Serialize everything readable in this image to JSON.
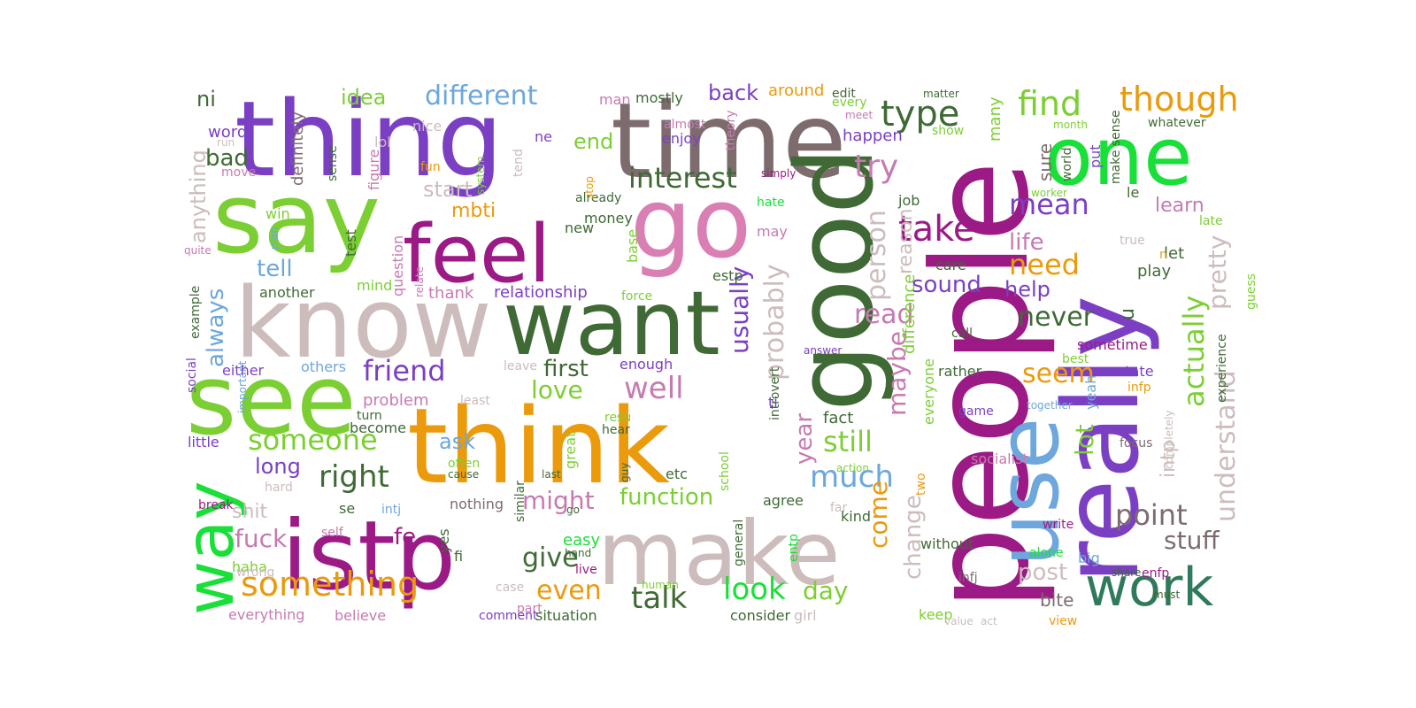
{
  "palette": {
    "purple": "#7b3fc4",
    "green": "#35d13b",
    "magenta": "#9c1a86",
    "lightgreen": "#7ccf33",
    "orange": "#eb9a0c",
    "taupe": "#7d6b6e",
    "rose": "#d97fb3",
    "darkgreen": "#3f6a35",
    "blue": "#6da7dd",
    "pink": "#c77ab0",
    "pale": "#cdbcbc",
    "brightgreen": "#19e038",
    "teal": "#2f7a5a",
    "grey": "#8a7a7a"
  },
  "words": [
    {
      "text": "thing",
      "color": "purple"
    },
    {
      "text": "time",
      "color": "taupe"
    },
    {
      "text": "one",
      "color": "brightgreen"
    },
    {
      "text": "people",
      "color": "magenta"
    },
    {
      "text": "really",
      "color": "purple"
    },
    {
      "text": "say",
      "color": "lightgreen"
    },
    {
      "text": "go",
      "color": "rose"
    },
    {
      "text": "feel",
      "color": "magenta"
    },
    {
      "text": "good",
      "color": "darkgreen"
    },
    {
      "text": "know",
      "color": "pale"
    },
    {
      "text": "want",
      "color": "darkgreen"
    },
    {
      "text": "see",
      "color": "lightgreen"
    },
    {
      "text": "think",
      "color": "orange"
    },
    {
      "text": "way",
      "color": "brightgreen"
    },
    {
      "text": "istp",
      "color": "magenta"
    },
    {
      "text": "make",
      "color": "pale"
    },
    {
      "text": "use",
      "color": "blue"
    },
    {
      "text": "work",
      "color": "teal"
    },
    {
      "text": "different",
      "color": "blue"
    },
    {
      "text": "interest",
      "color": "darkgreen"
    },
    {
      "text": "type",
      "color": "darkgreen"
    },
    {
      "text": "find",
      "color": "lightgreen"
    },
    {
      "text": "though",
      "color": "orange"
    },
    {
      "text": "try",
      "color": "pink"
    },
    {
      "text": "take",
      "color": "magenta"
    },
    {
      "text": "mean",
      "color": "purple"
    },
    {
      "text": "need",
      "color": "orange"
    },
    {
      "text": "life",
      "color": "pink"
    },
    {
      "text": "help",
      "color": "purple"
    },
    {
      "text": "person",
      "color": "pale"
    },
    {
      "text": "sound",
      "color": "purple"
    },
    {
      "text": "read",
      "color": "pink"
    },
    {
      "text": "never",
      "color": "darkgreen"
    },
    {
      "text": "seem",
      "color": "orange"
    },
    {
      "text": "lot",
      "color": "lightgreen"
    },
    {
      "text": "actually",
      "color": "lightgreen"
    },
    {
      "text": "pretty",
      "color": "pale"
    },
    {
      "text": "understand",
      "color": "pale"
    },
    {
      "text": "point",
      "color": "taupe"
    },
    {
      "text": "stuff",
      "color": "taupe"
    },
    {
      "text": "post",
      "color": "pale"
    },
    {
      "text": "bite",
      "color": "taupe"
    },
    {
      "text": "mbti",
      "color": "orange"
    },
    {
      "text": "start",
      "color": "pale"
    },
    {
      "text": "end",
      "color": "lightgreen"
    },
    {
      "text": "idea",
      "color": "lightgreen"
    },
    {
      "text": "back",
      "color": "purple"
    },
    {
      "text": "around",
      "color": "orange"
    },
    {
      "text": "tell",
      "color": "blue"
    },
    {
      "text": "always",
      "color": "blue"
    },
    {
      "text": "anything",
      "color": "pale"
    },
    {
      "text": "ni",
      "color": "darkgreen"
    },
    {
      "text": "bad",
      "color": "darkgreen"
    },
    {
      "text": "word",
      "color": "purple"
    },
    {
      "text": "friend",
      "color": "purple"
    },
    {
      "text": "well",
      "color": "pink"
    },
    {
      "text": "first",
      "color": "darkgreen"
    },
    {
      "text": "love",
      "color": "lightgreen"
    },
    {
      "text": "probably",
      "color": "pale"
    },
    {
      "text": "usually",
      "color": "purple"
    },
    {
      "text": "maybe",
      "color": "pink"
    },
    {
      "text": "still",
      "color": "lightgreen"
    },
    {
      "text": "much",
      "color": "blue"
    },
    {
      "text": "come",
      "color": "orange"
    },
    {
      "text": "change",
      "color": "pale"
    },
    {
      "text": "someone",
      "color": "lightgreen"
    },
    {
      "text": "right",
      "color": "darkgreen"
    },
    {
      "text": "long",
      "color": "purple"
    },
    {
      "text": "ask",
      "color": "blue"
    },
    {
      "text": "might",
      "color": "pink"
    },
    {
      "text": "function",
      "color": "lightgreen"
    },
    {
      "text": "something",
      "color": "orange"
    },
    {
      "text": "fuck",
      "color": "pink"
    },
    {
      "text": "shit",
      "color": "pale"
    },
    {
      "text": "give",
      "color": "darkgreen"
    },
    {
      "text": "even",
      "color": "orange"
    },
    {
      "text": "talk",
      "color": "darkgreen"
    },
    {
      "text": "look",
      "color": "brightgreen"
    },
    {
      "text": "day",
      "color": "lightgreen"
    },
    {
      "text": "year",
      "color": "pink"
    },
    {
      "text": "fact",
      "color": "darkgreen"
    },
    {
      "text": "relationship",
      "color": "purple"
    },
    {
      "text": "thank",
      "color": "pink"
    },
    {
      "text": "new",
      "color": "darkgreen"
    },
    {
      "text": "enjoy",
      "color": "purple"
    },
    {
      "text": "mostly",
      "color": "darkgreen"
    },
    {
      "text": "man",
      "color": "pink"
    },
    {
      "text": "ne",
      "color": "purple"
    },
    {
      "text": "nice",
      "color": "pale"
    },
    {
      "text": "lol",
      "color": "pale"
    },
    {
      "text": "definitely",
      "color": "taupe"
    },
    {
      "text": "fun",
      "color": "orange"
    },
    {
      "text": "already",
      "color": "darkgreen"
    },
    {
      "text": "money",
      "color": "darkgreen"
    },
    {
      "text": "hate",
      "color": "brightgreen"
    },
    {
      "text": "may",
      "color": "pink"
    },
    {
      "text": "simply",
      "color": "magenta"
    },
    {
      "text": "theory",
      "color": "pink"
    },
    {
      "text": "almost",
      "color": "pink"
    },
    {
      "text": "edit",
      "color": "darkgreen"
    },
    {
      "text": "every",
      "color": "lightgreen"
    },
    {
      "text": "meet",
      "color": "pink"
    },
    {
      "text": "happen",
      "color": "purple"
    },
    {
      "text": "matter",
      "color": "darkgreen"
    },
    {
      "text": "show",
      "color": "lightgreen"
    },
    {
      "text": "many",
      "color": "lightgreen"
    },
    {
      "text": "job",
      "color": "darkgreen"
    },
    {
      "text": "reason",
      "color": "pale"
    },
    {
      "text": "care",
      "color": "darkgreen"
    },
    {
      "text": "difference",
      "color": "lightgreen"
    },
    {
      "text": "call",
      "color": "darkgreen"
    },
    {
      "text": "rather",
      "color": "darkgreen"
    },
    {
      "text": "everyone",
      "color": "lightgreen"
    },
    {
      "text": "answer",
      "color": "purple"
    },
    {
      "text": "introvert",
      "color": "darkgreen"
    },
    {
      "text": "ti",
      "color": "purple"
    },
    {
      "text": "enough",
      "color": "purple"
    },
    {
      "text": "estp",
      "color": "darkgreen"
    },
    {
      "text": "force",
      "color": "lightgreen"
    },
    {
      "text": "base",
      "color": "lightgreen"
    },
    {
      "text": "question",
      "color": "pink"
    },
    {
      "text": "relate",
      "color": "pink"
    },
    {
      "text": "mind",
      "color": "lightgreen"
    },
    {
      "text": "test",
      "color": "darkgreen"
    },
    {
      "text": "another",
      "color": "darkgreen"
    },
    {
      "text": "example",
      "color": "darkgreen"
    },
    {
      "text": "quite",
      "color": "pink"
    },
    {
      "text": "plan",
      "color": "blue"
    },
    {
      "text": "win",
      "color": "lightgreen"
    },
    {
      "text": "move",
      "color": "pink"
    },
    {
      "text": "run",
      "color": "pale"
    },
    {
      "text": "sense",
      "color": "darkgreen"
    },
    {
      "text": "figure",
      "color": "pink"
    },
    {
      "text": "system",
      "color": "lightgreen"
    },
    {
      "text": "tend",
      "color": "pale"
    },
    {
      "text": "stop",
      "color": "orange"
    },
    {
      "text": "social",
      "color": "purple"
    },
    {
      "text": "important",
      "color": "blue"
    },
    {
      "text": "either",
      "color": "purple"
    },
    {
      "text": "others",
      "color": "blue"
    },
    {
      "text": "leave",
      "color": "pale"
    },
    {
      "text": "problem",
      "color": "pink"
    },
    {
      "text": "least",
      "color": "pale"
    },
    {
      "text": "turn",
      "color": "darkgreen"
    },
    {
      "text": "become",
      "color": "darkgreen"
    },
    {
      "text": "little",
      "color": "purple"
    },
    {
      "text": "hard",
      "color": "pale"
    },
    {
      "text": "break",
      "color": "magenta"
    },
    {
      "text": "se",
      "color": "darkgreen"
    },
    {
      "text": "intj",
      "color": "blue"
    },
    {
      "text": "self",
      "color": "pink"
    },
    {
      "text": "haha",
      "color": "lightgreen"
    },
    {
      "text": "fe",
      "color": "magenta"
    },
    {
      "text": "wrong",
      "color": "pale"
    },
    {
      "text": "everything",
      "color": "pink"
    },
    {
      "text": "believe",
      "color": "pink"
    },
    {
      "text": "yes",
      "color": "darkgreen"
    },
    {
      "text": "fi",
      "color": "darkgreen"
    },
    {
      "text": "cause",
      "color": "darkgreen"
    },
    {
      "text": "often",
      "color": "lightgreen"
    },
    {
      "text": "nothing",
      "color": "taupe"
    },
    {
      "text": "similar",
      "color": "darkgreen"
    },
    {
      "text": "go",
      "color": "darkgreen"
    },
    {
      "text": "last",
      "color": "darkgreen"
    },
    {
      "text": "great",
      "color": "lightgreen"
    },
    {
      "text": "resu",
      "color": "lightgreen"
    },
    {
      "text": "hear",
      "color": "darkgreen"
    },
    {
      "text": "guy",
      "color": "darkgreen"
    },
    {
      "text": "etc",
      "color": "darkgreen"
    },
    {
      "text": "school",
      "color": "lightgreen"
    },
    {
      "text": "easy",
      "color": "brightgreen"
    },
    {
      "text": "hand",
      "color": "darkgreen"
    },
    {
      "text": "case",
      "color": "pale"
    },
    {
      "text": "part",
      "color": "pink"
    },
    {
      "text": "live",
      "color": "magenta"
    },
    {
      "text": "human",
      "color": "lightgreen"
    },
    {
      "text": "comment",
      "color": "purple"
    },
    {
      "text": "situation",
      "color": "darkgreen"
    },
    {
      "text": "general",
      "color": "darkgreen"
    },
    {
      "text": "consider",
      "color": "darkgreen"
    },
    {
      "text": "girl",
      "color": "pale"
    },
    {
      "text": "entp",
      "color": "brightgreen"
    },
    {
      "text": "agree",
      "color": "darkgreen"
    },
    {
      "text": "far",
      "color": "pale"
    },
    {
      "text": "kind",
      "color": "darkgreen"
    },
    {
      "text": "action",
      "color": "lightgreen"
    },
    {
      "text": "two",
      "color": "orange"
    },
    {
      "text": "without",
      "color": "darkgreen"
    },
    {
      "text": "keep",
      "color": "lightgreen"
    },
    {
      "text": "value",
      "color": "pale"
    },
    {
      "text": "act",
      "color": "pale"
    },
    {
      "text": "infj",
      "color": "taupe"
    },
    {
      "text": "view",
      "color": "orange"
    },
    {
      "text": "game",
      "color": "purple"
    },
    {
      "text": "together",
      "color": "blue"
    },
    {
      "text": "socialist",
      "color": "pink"
    },
    {
      "text": "focus",
      "color": "taupe"
    },
    {
      "text": "yeah",
      "color": "blue"
    },
    {
      "text": "write",
      "color": "magenta"
    },
    {
      "text": "alone",
      "color": "brightgreen"
    },
    {
      "text": "big",
      "color": "blue"
    },
    {
      "text": "share",
      "color": "darkgreen"
    },
    {
      "text": "enfp",
      "color": "magenta"
    },
    {
      "text": "must",
      "color": "darkgreen"
    },
    {
      "text": "completely",
      "color": "pale"
    },
    {
      "text": "intp",
      "color": "pale"
    },
    {
      "text": "u",
      "color": "darkgreen"
    },
    {
      "text": "sometime",
      "color": "magenta"
    },
    {
      "text": "best",
      "color": "lightgreen"
    },
    {
      "text": "state",
      "color": "purple"
    },
    {
      "text": "infp",
      "color": "orange"
    },
    {
      "text": "experience",
      "color": "darkgreen"
    },
    {
      "text": "guess",
      "color": "lightgreen"
    },
    {
      "text": "play",
      "color": "darkgreen"
    },
    {
      "text": "let",
      "color": "darkgreen"
    },
    {
      "text": "n",
      "color": "orange"
    },
    {
      "text": "true",
      "color": "pale"
    },
    {
      "text": "late",
      "color": "lightgreen"
    },
    {
      "text": "learn",
      "color": "pink"
    },
    {
      "text": "le",
      "color": "darkgreen"
    },
    {
      "text": "worker",
      "color": "lightgreen"
    },
    {
      "text": "sure",
      "color": "taupe"
    },
    {
      "text": "world",
      "color": "darkgreen"
    },
    {
      "text": "put",
      "color": "purple"
    },
    {
      "text": "make sense",
      "color": "darkgreen"
    },
    {
      "text": "whatever",
      "color": "darkgreen"
    },
    {
      "text": "month",
      "color": "lightgreen"
    }
  ]
}
